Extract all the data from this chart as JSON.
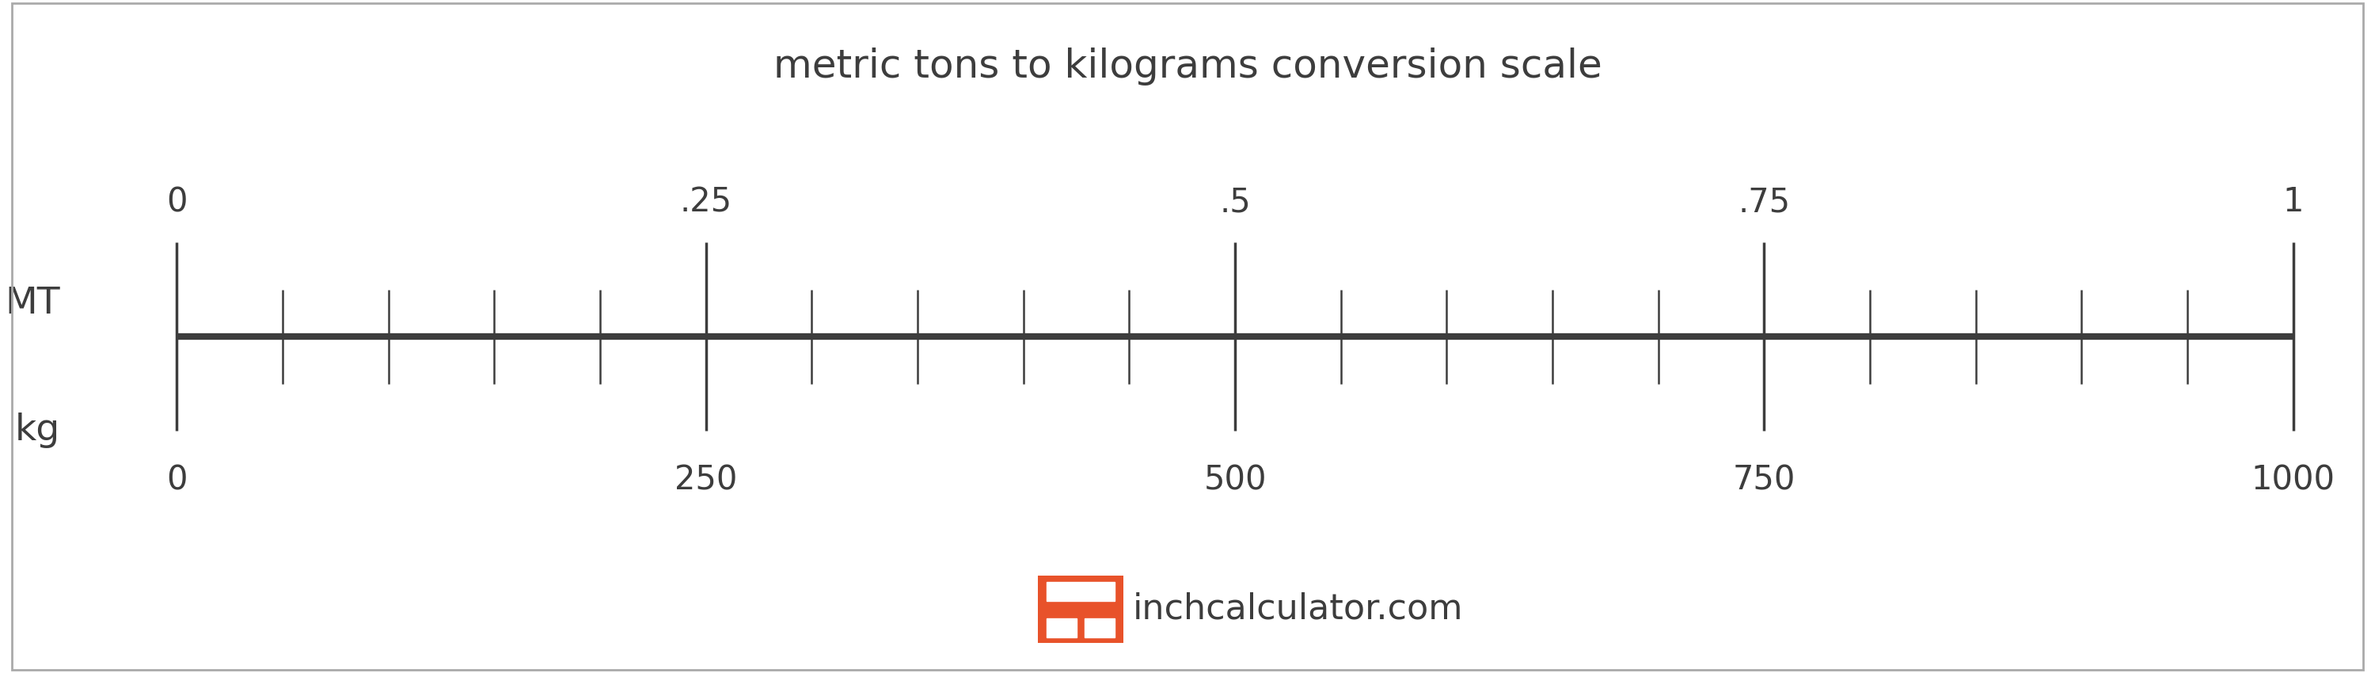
{
  "title": "metric tons to kilograms conversion scale",
  "title_fontsize": 36,
  "title_color": "#3d3d3d",
  "background_color": "#ffffff",
  "border_color": "#aaaaaa",
  "scale_line_color": "#3d3d3d",
  "scale_line_lw": 6,
  "tick_color": "#3d3d3d",
  "label_color": "#3d3d3d",
  "mt_label": "MT",
  "kg_label": "kg",
  "side_label_fontsize": 34,
  "mt_major_ticks": [
    0,
    0.25,
    0.5,
    0.75,
    1.0
  ],
  "mt_major_labels": [
    "0",
    ".25",
    ".5",
    ".75",
    "1"
  ],
  "kg_major_ticks": [
    0,
    250,
    500,
    750,
    1000
  ],
  "kg_major_labels": [
    "0",
    "250",
    "500",
    "750",
    "1000"
  ],
  "major_tick_fontsize": 30,
  "watermark_text": "inchcalculator.com",
  "watermark_color": "#3d3d3d",
  "watermark_fontsize": 32,
  "icon_color": "#e8522a",
  "n_minor_divisions": 20
}
